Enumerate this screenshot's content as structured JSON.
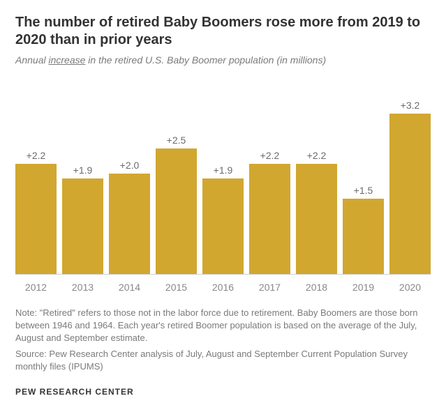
{
  "title": "The number of retired Baby Boomers rose more from 2019 to 2020 than in prior years",
  "subtitle_prefix": "Annual ",
  "subtitle_underline": "increase",
  "subtitle_suffix": " in the retired U.S. Baby Boomer population (in millions)",
  "chart": {
    "type": "bar",
    "categories": [
      "2012",
      "2013",
      "2014",
      "2015",
      "2016",
      "2017",
      "2018",
      "2019",
      "2020"
    ],
    "values": [
      2.2,
      1.9,
      2.0,
      2.5,
      1.9,
      2.2,
      2.2,
      1.5,
      3.2
    ],
    "value_labels": [
      "+2.2",
      "+1.9",
      "+2.0",
      "+2.5",
      "+1.9",
      "+2.2",
      "+2.2",
      "+1.5",
      "+3.2"
    ],
    "bar_color": "#d1a730",
    "max_scale": 3.6,
    "label_color": "#6b6b6b",
    "tick_color": "#888888",
    "label_fontsize": 14,
    "tick_fontsize": 14
  },
  "note": "Note: \"Retired\" refers to those not in the labor force due to retirement. Baby Boomers are those born between 1946 and 1964. Each year's retired Boomer population is based on the average of the July, August and September estimate.",
  "source": "Source: Pew Research Center analysis of July, August and September Current Population Survey monthly files (IPUMS)",
  "footer": "PEW RESEARCH CENTER",
  "colors": {
    "title": "#333333",
    "subtitle": "#7a7a7a",
    "note": "#7a7a7a",
    "background": "#ffffff",
    "axis_line": "#d0d0d0"
  }
}
